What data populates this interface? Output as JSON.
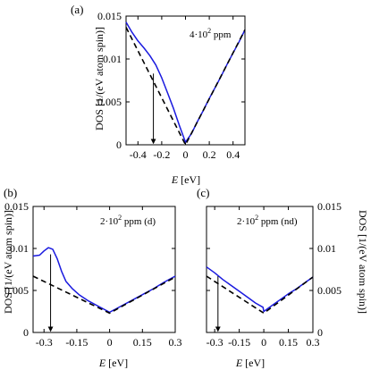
{
  "figure": {
    "panels": [
      {
        "letter": "(a)",
        "annotation_prefix": "4·10",
        "annotation_exp": "2",
        "annotation_suffix": " ppm"
      },
      {
        "letter": "(b)",
        "annotation_prefix": "2·10",
        "annotation_exp": "2",
        "annotation_suffix": " ppm (d)"
      },
      {
        "letter": "(c)",
        "annotation_prefix": "2·10",
        "annotation_exp": "2",
        "annotation_suffix": " ppm (nd)"
      }
    ],
    "ylabel": "DOS [1/(eV atom spin)]",
    "xlabel_var": "E",
    "xlabel_unit": " [eV]"
  },
  "colors": {
    "solid": "#1a1adf",
    "dashed": "#000000",
    "axis": "#000000",
    "arrow": "#000000"
  },
  "chart_data": [
    {
      "type": "line",
      "panel": "(a)",
      "xlim": [
        -0.5,
        0.5
      ],
      "ylim": [
        0,
        0.015
      ],
      "x_ticks": [
        -0.4,
        -0.2,
        0,
        0.2,
        0.4
      ],
      "x_tick_labels": [
        "-0.4",
        "-0.2",
        "0",
        "0.2",
        "0.4"
      ],
      "y_ticks": [
        0,
        0.005,
        0.01,
        0.015
      ],
      "y_tick_labels": [
        "0",
        "0.005",
        "0.01",
        "0.015"
      ],
      "y_tick_side": "left",
      "series": [
        {
          "style": "solid",
          "color": "#1a1adf",
          "x": [
            -0.5,
            -0.45,
            -0.4,
            -0.35,
            -0.3,
            -0.25,
            -0.2,
            -0.15,
            -0.1,
            -0.05,
            0,
            0.05,
            0.1,
            0.15,
            0.2,
            0.25,
            0.3,
            0.35,
            0.4,
            0.45,
            0.5
          ],
          "y": [
            0.0143,
            0.0131,
            0.0121,
            0.0113,
            0.0104,
            0.0093,
            0.0078,
            0.006,
            0.0042,
            0.0022,
            0.0003,
            0.0013,
            0.0027,
            0.004,
            0.0054,
            0.0067,
            0.008,
            0.0094,
            0.0107,
            0.012,
            0.0134
          ]
        },
        {
          "style": "dashed",
          "color": "#000000",
          "x": [
            -0.5,
            0,
            0.5
          ],
          "y": [
            0.0137,
            0.0,
            0.0134
          ]
        }
      ],
      "arrow": {
        "x": -0.27,
        "y_from": 0.0083,
        "y_to": 0.0002
      }
    },
    {
      "type": "line",
      "panel": "(b)",
      "xlim": [
        -0.35,
        0.3
      ],
      "ylim": [
        0,
        0.015
      ],
      "x_ticks": [
        -0.3,
        -0.15,
        0,
        0.15,
        0.3
      ],
      "x_tick_labels": [
        "-0.3",
        "-0.15",
        "0",
        "0.15",
        "0.3"
      ],
      "y_ticks": [
        0,
        0.005,
        0.01,
        0.015
      ],
      "y_tick_labels": [
        "0",
        "0.005",
        "0.01",
        "0.015"
      ],
      "y_tick_side": "left",
      "series": [
        {
          "style": "solid",
          "color": "#1a1adf",
          "x": [
            -0.35,
            -0.32,
            -0.3,
            -0.28,
            -0.26,
            -0.24,
            -0.22,
            -0.2,
            -0.17,
            -0.14,
            -0.1,
            -0.05,
            0,
            0.05,
            0.1,
            0.15,
            0.2,
            0.25,
            0.3
          ],
          "y": [
            0.0091,
            0.0092,
            0.0097,
            0.0101,
            0.0099,
            0.0088,
            0.0073,
            0.0061,
            0.0052,
            0.0045,
            0.0038,
            0.0031,
            0.0024,
            0.0031,
            0.0038,
            0.0045,
            0.0052,
            0.006,
            0.0067
          ]
        },
        {
          "style": "dashed",
          "color": "#000000",
          "x": [
            -0.35,
            0,
            0.3
          ],
          "y": [
            0.0067,
            0.0023,
            0.0066
          ]
        }
      ],
      "arrow": {
        "x": -0.27,
        "y_from": 0.0093,
        "y_to": 0.0002
      }
    },
    {
      "type": "line",
      "panel": "(c)",
      "xlim": [
        -0.35,
        0.3
      ],
      "ylim": [
        0,
        0.015
      ],
      "x_ticks": [
        -0.3,
        -0.15,
        0,
        0.15,
        0.3
      ],
      "x_tick_labels": [
        "-0.3",
        "-0.15",
        "0",
        "0.15",
        "0.3"
      ],
      "y_ticks": [
        0,
        0.005,
        0.01,
        0.015
      ],
      "y_tick_labels": [
        "0",
        "0.005",
        "0.01",
        "0.015"
      ],
      "y_tick_side": "right",
      "series": [
        {
          "style": "solid",
          "color": "#1a1adf",
          "x": [
            -0.35,
            -0.3,
            -0.25,
            -0.2,
            -0.15,
            -0.1,
            -0.05,
            -0.005,
            0,
            0.05,
            0.1,
            0.15,
            0.2,
            0.25,
            0.3
          ],
          "y": [
            0.0078,
            0.0071,
            0.0063,
            0.0056,
            0.0049,
            0.0042,
            0.0035,
            0.003,
            0.0025,
            0.0032,
            0.0039,
            0.0046,
            0.0052,
            0.0059,
            0.0066
          ]
        },
        {
          "style": "dashed",
          "color": "#000000",
          "x": [
            -0.35,
            0,
            0.3
          ],
          "y": [
            0.0067,
            0.0023,
            0.0066
          ]
        }
      ],
      "arrow": {
        "x": -0.28,
        "y_from": 0.0067,
        "y_to": 0.0002
      }
    }
  ]
}
